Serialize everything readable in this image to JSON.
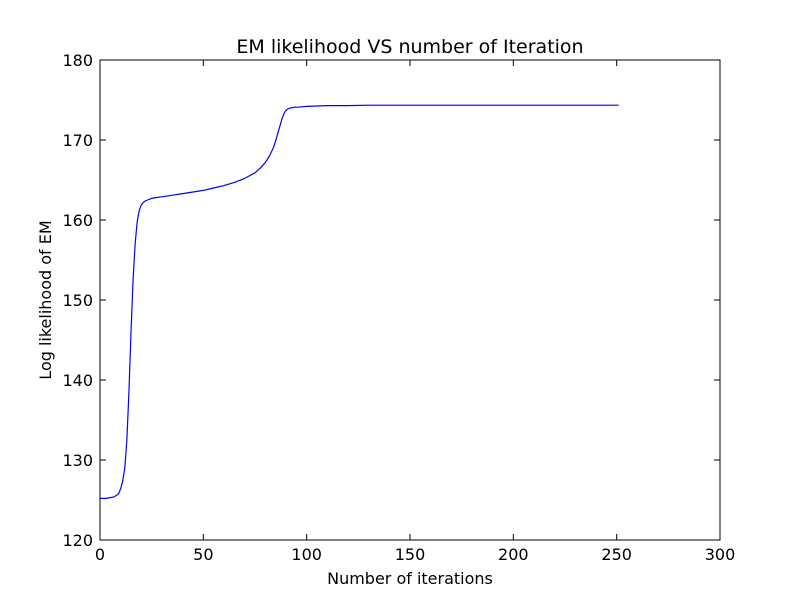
{
  "chart_data": {
    "type": "line",
    "title": "EM likelihood VS number of Iteration",
    "xlabel": "Number of iterations",
    "ylabel": "Log likelihood of EM",
    "xlim": [
      0,
      300
    ],
    "ylim": [
      120,
      180
    ],
    "xticks": [
      0,
      50,
      100,
      150,
      200,
      250,
      300
    ],
    "yticks": [
      120,
      130,
      140,
      150,
      160,
      170,
      180
    ],
    "xtick_labels": [
      "0",
      "50",
      "100",
      "150",
      "200",
      "250",
      "300"
    ],
    "ytick_labels": [
      "120",
      "130",
      "140",
      "150",
      "160",
      "170",
      "180"
    ],
    "grid": false,
    "legend": "none",
    "series": [
      {
        "color": "#0000ff",
        "x": [
          0,
          3,
          5,
          7,
          9,
          10,
          11,
          12,
          13,
          14,
          15,
          16,
          17,
          18,
          19,
          20,
          21,
          22,
          23,
          24,
          25,
          27,
          30,
          35,
          40,
          45,
          50,
          55,
          60,
          65,
          70,
          75,
          78,
          80,
          82,
          84,
          85,
          86,
          87,
          88,
          89,
          90,
          91,
          92,
          94,
          96,
          100,
          110,
          120,
          130,
          150,
          175,
          200,
          225,
          251
        ],
        "y": [
          125.2,
          125.2,
          125.3,
          125.4,
          125.8,
          126.4,
          127.4,
          129.0,
          132.5,
          138.5,
          146.0,
          152.5,
          157.0,
          159.8,
          161.2,
          161.9,
          162.2,
          162.4,
          162.5,
          162.6,
          162.7,
          162.8,
          162.9,
          163.1,
          163.3,
          163.5,
          163.7,
          164.0,
          164.3,
          164.7,
          165.2,
          165.9,
          166.6,
          167.2,
          168.0,
          169.1,
          169.9,
          170.8,
          171.7,
          172.6,
          173.3,
          173.7,
          173.9,
          174.0,
          174.1,
          174.1,
          174.2,
          174.3,
          174.3,
          174.35,
          174.35,
          174.35,
          174.35,
          174.35,
          174.35
        ]
      }
    ]
  }
}
